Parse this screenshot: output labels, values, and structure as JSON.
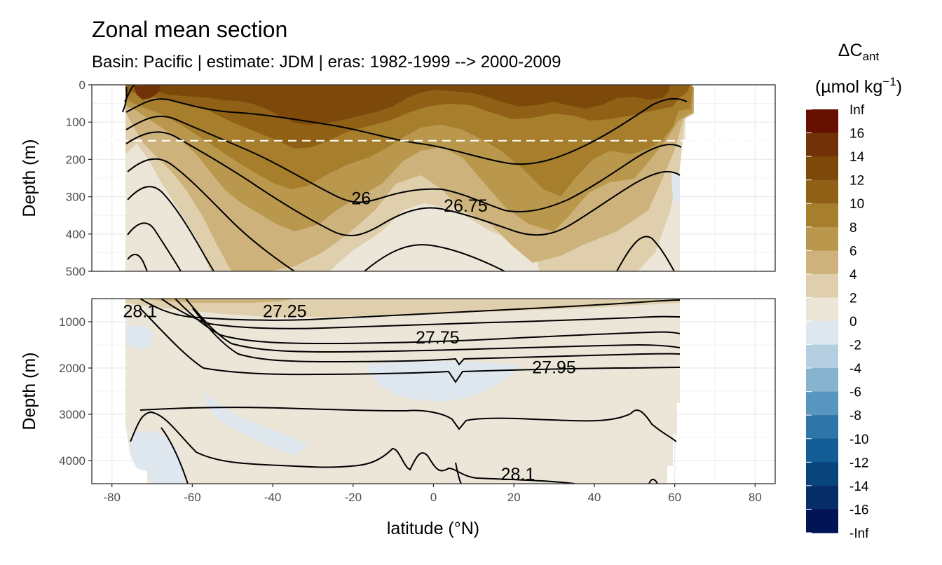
{
  "title": "Zonal mean section",
  "subtitle": "Basin: Pacific | estimate: JDM  | eras: 1982-1999 --> 2000-2009",
  "chart_data": {
    "type": "heatmap",
    "description_units": "Zonal mean anthropogenic carbon change vs latitude and depth with density contours",
    "xlabel": "latitude (°N)",
    "ylabel": "Depth (m)",
    "xlim": [
      -85,
      85
    ],
    "x_ticks": [
      -80,
      -60,
      -40,
      -20,
      0,
      20,
      40,
      60,
      80
    ],
    "x_tick_labels": [
      "-80",
      "-60",
      "-40",
      "-20",
      "0",
      "20",
      "40",
      "60",
      "80"
    ],
    "data_lat_range": [
      -77,
      64
    ],
    "panels": [
      {
        "name": "upper",
        "ylim": [
          500,
          0
        ],
        "y_ticks": [
          0,
          100,
          200,
          300,
          400,
          500
        ],
        "y_tick_labels": [
          "0",
          "100",
          "200",
          "300",
          "400",
          "500"
        ],
        "reference_line_depth": 150,
        "contour_labels": [
          {
            "text": "26",
            "lat": -18,
            "depth": 305
          },
          {
            "text": "26.75",
            "lat": 8,
            "depth": 325
          }
        ]
      },
      {
        "name": "lower",
        "ylim": [
          4500,
          500
        ],
        "y_ticks": [
          1000,
          2000,
          3000,
          4000
        ],
        "y_tick_labels": [
          "1000",
          "2000",
          "3000",
          "4000"
        ],
        "contour_labels": [
          {
            "text": "28.1",
            "lat": -73,
            "depth": 780
          },
          {
            "text": "27.25",
            "lat": -37,
            "depth": 780
          },
          {
            "text": "27.75",
            "lat": 1,
            "depth": 1350
          },
          {
            "text": "27.95",
            "lat": 30,
            "depth": 1990
          },
          {
            "text": "28.1",
            "lat": 21,
            "depth": 4300
          }
        ]
      }
    ],
    "legend": {
      "title_main": "ΔC",
      "title_sub": "ant",
      "unit_prefix": "(µmol kg",
      "unit_sup": "−1",
      "unit_suffix": ")",
      "position": "right",
      "breaks": [
        "Inf",
        "16",
        "14",
        "12",
        "10",
        "8",
        "6",
        "4",
        "2",
        "0",
        "-2",
        "-4",
        "-6",
        "-8",
        "-10",
        "-12",
        "-14",
        "-16",
        "-Inf"
      ],
      "colors": [
        "#661100",
        "#713208",
        "#7d490a",
        "#8f6015",
        "#a67e2c",
        "#b9974c",
        "#cdb27c",
        "#dfcfac",
        "#ece6d9",
        "#dfe8ee",
        "#b5cfe0",
        "#87b3cf",
        "#5895bf",
        "#2f75a9",
        "#145c95",
        "#0a447c",
        "#062d67",
        "#021455"
      ]
    }
  }
}
